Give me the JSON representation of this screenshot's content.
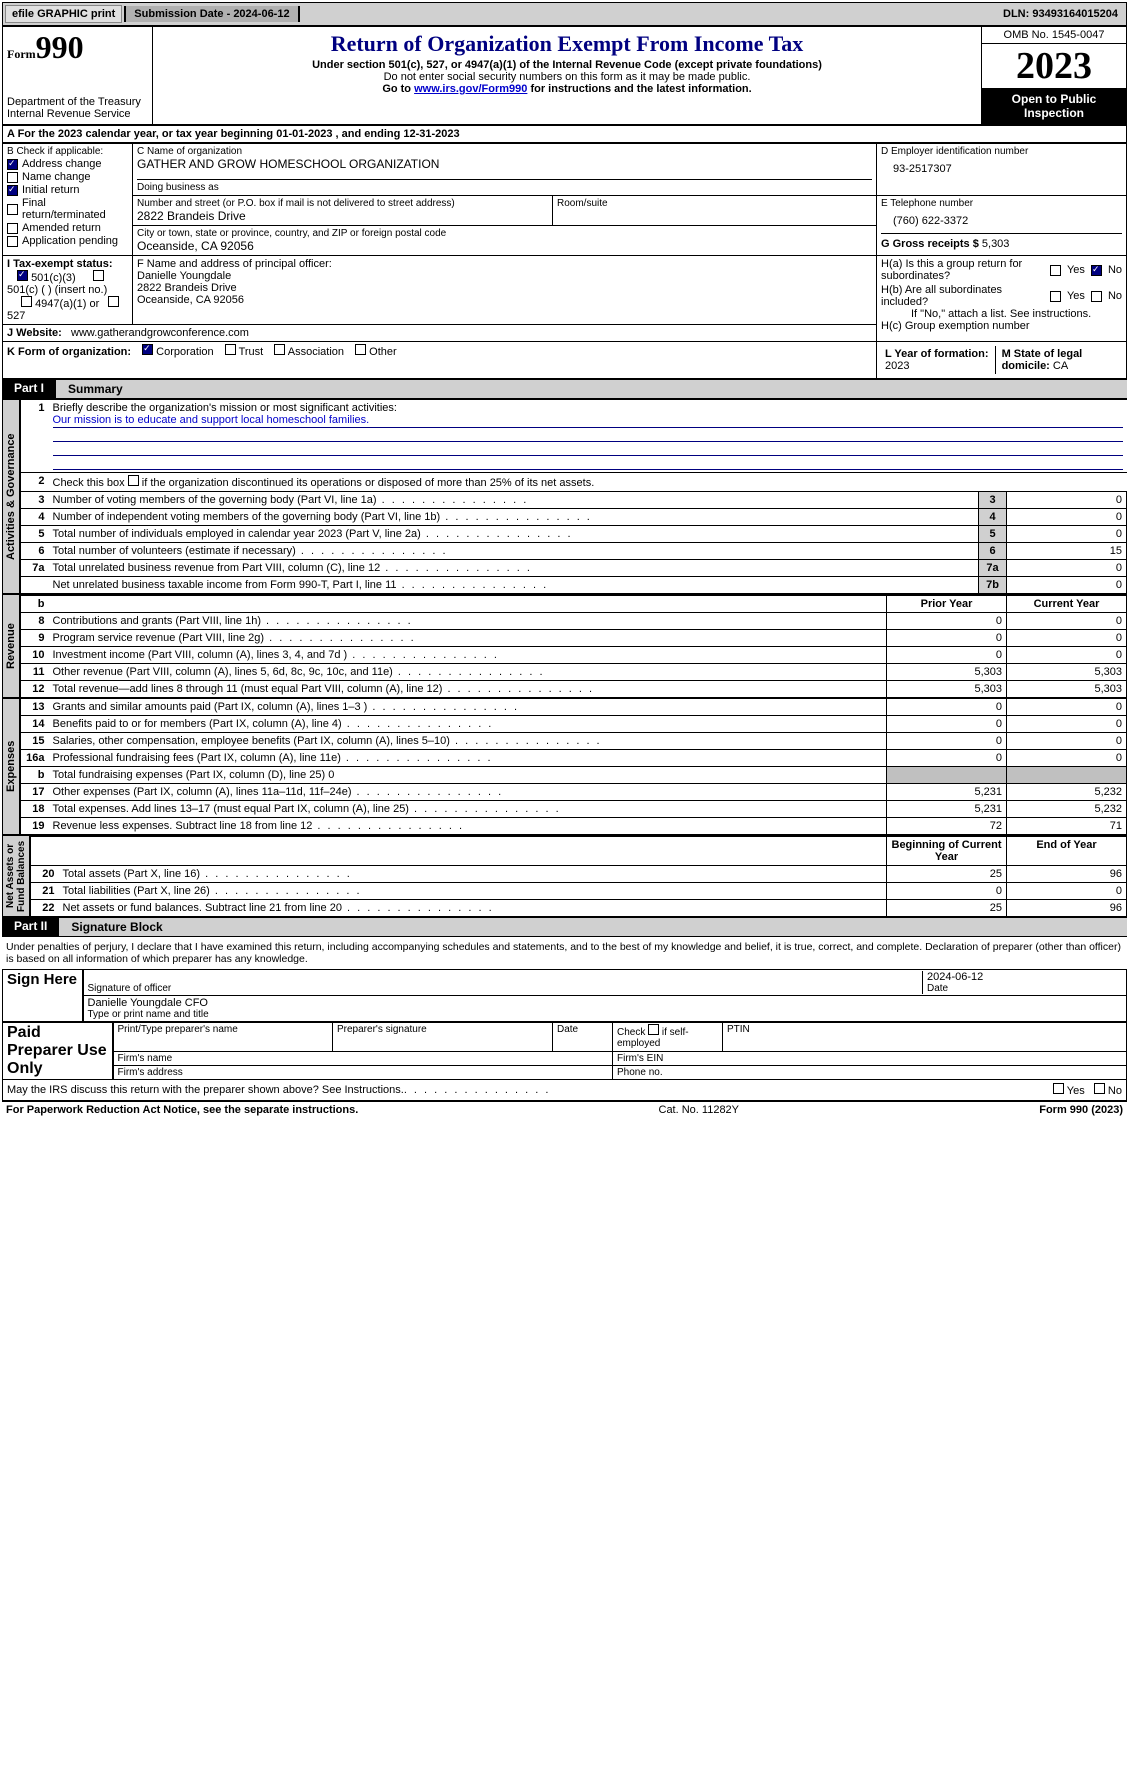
{
  "topbar": {
    "efile": "efile GRAPHIC print",
    "submission": "Submission Date - 2024-06-12",
    "dln": "DLN: 93493164015204"
  },
  "header": {
    "form": "990",
    "form_prefix": "Form",
    "dept": "Department of the Treasury\nInternal Revenue Service",
    "title": "Return of Organization Exempt From Income Tax",
    "subtitle": "Under section 501(c), 527, or 4947(a)(1) of the Internal Revenue Code (except private foundations)",
    "note": "Do not enter social security numbers on this form as it may be made public.",
    "goto": "Go to ",
    "goto_link": "www.irs.gov/Form990",
    "goto_suffix": " for instructions and the latest information.",
    "omb": "OMB No. 1545-0047",
    "year": "2023",
    "open": "Open to Public Inspection"
  },
  "A": {
    "text_prefix": "A For the 2023 calendar year, or tax year beginning ",
    "begin": "01-01-2023",
    "mid": " , and ending ",
    "end": "12-31-2023"
  },
  "B": {
    "label": "B Check if applicable:",
    "items": [
      {
        "label": "Address change",
        "checked": true
      },
      {
        "label": "Name change",
        "checked": false
      },
      {
        "label": "Initial return",
        "checked": true
      },
      {
        "label": "Final return/terminated",
        "checked": false
      },
      {
        "label": "Amended return",
        "checked": false
      },
      {
        "label": "Application pending",
        "checked": false
      }
    ]
  },
  "C": {
    "name_label": "C Name of organization",
    "name": "GATHER AND GROW HOMESCHOOL ORGANIZATION",
    "dba_label": "Doing business as",
    "dba": "",
    "street_label": "Number and street (or P.O. box if mail is not delivered to street address)",
    "street": "2822 Brandeis Drive",
    "room_label": "Room/suite",
    "city_label": "City or town, state or province, country, and ZIP or foreign postal code",
    "city": "Oceanside, CA  92056"
  },
  "D": {
    "label": "D Employer identification number",
    "val": "93-2517307"
  },
  "E": {
    "label": "E Telephone number",
    "val": "(760) 622-3372"
  },
  "G": {
    "label": "G Gross receipts $ ",
    "val": "5,303"
  },
  "F": {
    "label": "F  Name and address of principal officer:",
    "name": "Danielle Youngdale",
    "addr1": "2822 Brandeis Drive",
    "addr2": "Oceanside, CA  92056"
  },
  "H": {
    "a_label": "H(a)  Is this a group return for subordinates?",
    "a_yes": "Yes",
    "a_no": "No",
    "b_label": "H(b)  Are all subordinates included?",
    "b_note": "If \"No,\" attach a list. See instructions.",
    "c_label": "H(c)  Group exemption number "
  },
  "I": {
    "label": "I  Tax-exempt status:",
    "opts": [
      "501(c)(3)",
      "501(c) (  ) (insert no.)",
      "4947(a)(1) or",
      "527"
    ]
  },
  "J": {
    "label": "J  Website: ",
    "val": "www.gatherandgrowconference.com"
  },
  "K": {
    "label": "K Form of organization:",
    "opts": [
      "Corporation",
      "Trust",
      "Association",
      "Other"
    ]
  },
  "L": {
    "label": "L Year of formation: ",
    "val": "2023"
  },
  "M": {
    "label": "M State of legal domicile: ",
    "val": "CA"
  },
  "part1": {
    "tab": "Part I",
    "title": "Summary",
    "line1_label": "Briefly describe the organization's mission or most significant activities:",
    "mission": "Our mission is to educate and support local homeschool families.",
    "line2_label": "Check this box         if the organization discontinued its operations or disposed of more than 25% of its net assets."
  },
  "governance_rows": [
    {
      "no": "3",
      "desc": "Number of voting members of the governing body (Part VI, line 1a)",
      "col": "3",
      "val": "0"
    },
    {
      "no": "4",
      "desc": "Number of independent voting members of the governing body (Part VI, line 1b)",
      "col": "4",
      "val": "0"
    },
    {
      "no": "5",
      "desc": "Total number of individuals employed in calendar year 2023 (Part V, line 2a)",
      "col": "5",
      "val": "0"
    },
    {
      "no": "6",
      "desc": "Total number of volunteers (estimate if necessary)",
      "col": "6",
      "val": "15"
    },
    {
      "no": "7a",
      "desc": "Total unrelated business revenue from Part VIII, column (C), line 12",
      "col": "7a",
      "val": "0"
    },
    {
      "no": "",
      "desc": "Net unrelated business taxable income from Form 990-T, Part I, line 11",
      "col": "7b",
      "val": "0"
    }
  ],
  "revenue_header": {
    "prior": "Prior Year",
    "current": "Current Year"
  },
  "revenue_rows": [
    {
      "no": "8",
      "desc": "Contributions and grants (Part VIII, line 1h)",
      "prior": "0",
      "current": "0"
    },
    {
      "no": "9",
      "desc": "Program service revenue (Part VIII, line 2g)",
      "prior": "0",
      "current": "0"
    },
    {
      "no": "10",
      "desc": "Investment income (Part VIII, column (A), lines 3, 4, and 7d )",
      "prior": "0",
      "current": "0"
    },
    {
      "no": "11",
      "desc": "Other revenue (Part VIII, column (A), lines 5, 6d, 8c, 9c, 10c, and 11e)",
      "prior": "5,303",
      "current": "5,303"
    },
    {
      "no": "12",
      "desc": "Total revenue—add lines 8 through 11 (must equal Part VIII, column (A), line 12)",
      "prior": "5,303",
      "current": "5,303"
    }
  ],
  "expense_rows": [
    {
      "no": "13",
      "desc": "Grants and similar amounts paid (Part IX, column (A), lines 1–3 )",
      "prior": "0",
      "current": "0"
    },
    {
      "no": "14",
      "desc": "Benefits paid to or for members (Part IX, column (A), line 4)",
      "prior": "0",
      "current": "0"
    },
    {
      "no": "15",
      "desc": "Salaries, other compensation, employee benefits (Part IX, column (A), lines 5–10)",
      "prior": "0",
      "current": "0"
    },
    {
      "no": "16a",
      "desc": "Professional fundraising fees (Part IX, column (A), line 11e)",
      "prior": "0",
      "current": "0"
    },
    {
      "no": "b",
      "desc": "Total fundraising expenses (Part IX, column (D), line 25) 0",
      "prior": "",
      "current": "",
      "grey": true
    },
    {
      "no": "17",
      "desc": "Other expenses (Part IX, column (A), lines 11a–11d, 11f–24e)",
      "prior": "5,231",
      "current": "5,232"
    },
    {
      "no": "18",
      "desc": "Total expenses. Add lines 13–17 (must equal Part IX, column (A), line 25)",
      "prior": "5,231",
      "current": "5,232"
    },
    {
      "no": "19",
      "desc": "Revenue less expenses. Subtract line 18 from line 12",
      "prior": "72",
      "current": "71"
    }
  ],
  "netassets_header": {
    "begin": "Beginning of Current Year",
    "end": "End of Year"
  },
  "netassets_rows": [
    {
      "no": "20",
      "desc": "Total assets (Part X, line 16)",
      "begin": "25",
      "end": "96"
    },
    {
      "no": "21",
      "desc": "Total liabilities (Part X, line 26)",
      "begin": "0",
      "end": "0"
    },
    {
      "no": "22",
      "desc": "Net assets or fund balances. Subtract line 21 from line 20",
      "begin": "25",
      "end": "96"
    }
  ],
  "part2": {
    "tab": "Part II",
    "title": "Signature Block",
    "declaration": "Under penalties of perjury, I declare that I have examined this return, including accompanying schedules and statements, and to the best of my knowledge and belief, it is true, correct, and complete. Declaration of preparer (other than officer) is based on all information of which preparer has any knowledge."
  },
  "sign": {
    "here": "Sign Here",
    "sig_label": "Signature of officer",
    "date_label": "Date",
    "date_val": "2024-06-12",
    "name": "Danielle Youngdale CFO",
    "name_label": "Type or print name and title"
  },
  "paid": {
    "label": "Paid Preparer Use Only",
    "col1": "Print/Type preparer's name",
    "col2": "Preparer's signature",
    "col3": "Date",
    "col4": "Check        if self-employed",
    "col5": "PTIN",
    "firm_name": "Firm's name   ",
    "firm_ein": "Firm's EIN  ",
    "firm_addr": "Firm's address   ",
    "phone": "Phone no."
  },
  "discuss": "May the IRS discuss this return with the preparer shown above? See Instructions.",
  "footer": {
    "left": "For Paperwork Reduction Act Notice, see the separate instructions.",
    "cat": "Cat. No. 11282Y",
    "right": "Form 990 (2023)"
  },
  "colors": {
    "navy": "#000080",
    "link": "#0000cc",
    "grey_header": "#d0d0d0",
    "grey_cell": "#c0c0c0"
  }
}
